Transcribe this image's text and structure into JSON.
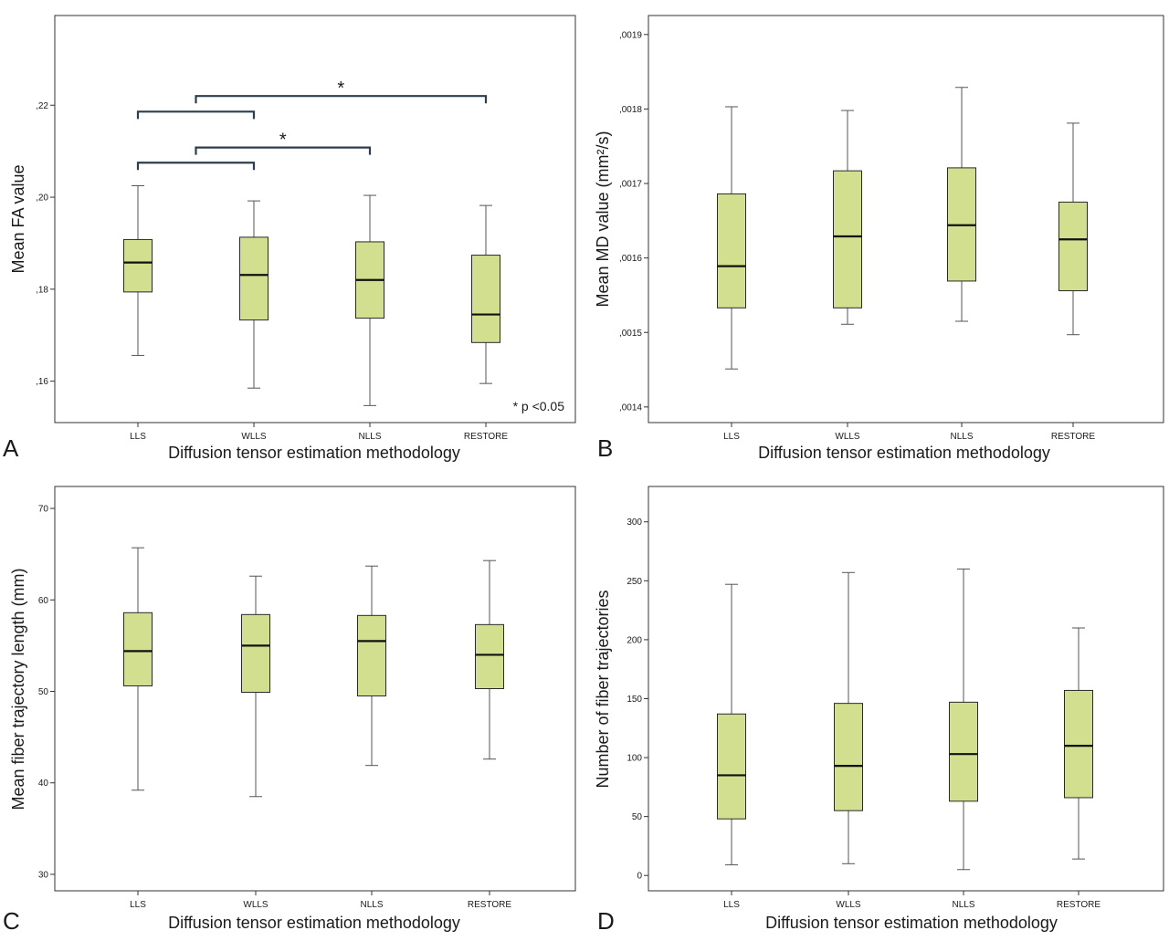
{
  "figure": {
    "colors": {
      "box_fill": "#d2df8e",
      "box_stroke": "#2a2a2a",
      "whisker": "#555555",
      "axis": "#333333",
      "sig_bar": "#2c3e4e"
    }
  },
  "chart_data": [
    {
      "panel": "A",
      "type": "box",
      "xlabel": "Diffusion tensor estimation methodology",
      "ylabel": "Mean FA value",
      "categories": [
        "LLS",
        "WLLS",
        "NLLS",
        "RESTORE"
      ],
      "ylim": [
        0.151,
        0.2395
      ],
      "yticks": [
        0.16,
        0.18,
        0.2,
        0.22
      ],
      "ytick_labels": [
        ",16",
        ",18",
        ",20",
        ",22"
      ],
      "boxes": [
        {
          "min": 0.1656,
          "q1": 0.1794,
          "median": 0.1858,
          "q3": 0.1908,
          "max": 0.2025
        },
        {
          "min": 0.1585,
          "q1": 0.1733,
          "median": 0.1831,
          "q3": 0.1913,
          "max": 0.1992
        },
        {
          "min": 0.1547,
          "q1": 0.1737,
          "median": 0.182,
          "q3": 0.1903,
          "max": 0.2004
        },
        {
          "min": 0.1595,
          "q1": 0.1684,
          "median": 0.1745,
          "q3": 0.1874,
          "max": 0.1982
        }
      ],
      "significance": [
        {
          "from": 0,
          "to": 1,
          "level": 0.2186,
          "star": ""
        },
        {
          "from": 0.5,
          "to": 3,
          "level": 0.222,
          "star": "*"
        },
        {
          "from": 0,
          "to": 1,
          "level": 0.2075,
          "star": ""
        },
        {
          "from": 0.5,
          "to": 2,
          "level": 0.2108,
          "star": "*"
        }
      ],
      "annotation": "* p <0.05"
    },
    {
      "panel": "B",
      "type": "box",
      "xlabel": "Diffusion tensor estimation methodology",
      "ylabel": "Mean MD value (mm²/s)",
      "categories": [
        "LLS",
        "WLLS",
        "NLLS",
        "RESTORE"
      ],
      "ylim": [
        0.001379,
        0.0019255
      ],
      "yticks": [
        0.0014,
        0.0015,
        0.0016,
        0.0017,
        0.0018,
        0.0019
      ],
      "ytick_labels": [
        ",0014",
        ",0015",
        ",0016",
        ",0017",
        ",0018",
        ",0019"
      ],
      "boxes": [
        {
          "min": 0.001451,
          "q1": 0.001533,
          "median": 0.001589,
          "q3": 0.001686,
          "max": 0.001803
        },
        {
          "min": 0.001511,
          "q1": 0.001533,
          "median": 0.001629,
          "q3": 0.001717,
          "max": 0.001798
        },
        {
          "min": 0.001515,
          "q1": 0.001569,
          "median": 0.001644,
          "q3": 0.001721,
          "max": 0.001829
        },
        {
          "min": 0.001497,
          "q1": 0.001556,
          "median": 0.001625,
          "q3": 0.001675,
          "max": 0.001781
        }
      ]
    },
    {
      "panel": "C",
      "type": "box",
      "xlabel": "Diffusion tensor estimation methodology",
      "ylabel": "Mean fiber trajectory length (mm)",
      "categories": [
        "LLS",
        "WLLS",
        "NLLS",
        "RESTORE"
      ],
      "ylim": [
        28.2,
        72.4
      ],
      "yticks": [
        30,
        40,
        50,
        60,
        70
      ],
      "ytick_labels": [
        "30",
        "40",
        "50",
        "60",
        "70"
      ],
      "boxes": [
        {
          "min": 39.2,
          "q1": 50.6,
          "median": 54.4,
          "q3": 58.6,
          "max": 65.7
        },
        {
          "min": 38.5,
          "q1": 49.9,
          "median": 55.0,
          "q3": 58.4,
          "max": 62.6
        },
        {
          "min": 41.9,
          "q1": 49.5,
          "median": 55.5,
          "q3": 58.3,
          "max": 63.7
        },
        {
          "min": 42.6,
          "q1": 50.3,
          "median": 54.0,
          "q3": 57.3,
          "max": 64.3
        }
      ]
    },
    {
      "panel": "D",
      "type": "box",
      "xlabel": "Diffusion tensor estimation methodology",
      "ylabel": "Number of fiber trajectories",
      "categories": [
        "LLS",
        "WLLS",
        "NLLS",
        "RESTORE"
      ],
      "ylim": [
        -13,
        330
      ],
      "yticks": [
        0,
        50,
        100,
        150,
        200,
        250,
        300
      ],
      "ytick_labels": [
        "0",
        "50",
        "100",
        "150",
        "200",
        "250",
        "300"
      ],
      "boxes": [
        {
          "min": 9,
          "q1": 48,
          "median": 85,
          "q3": 137,
          "max": 247
        },
        {
          "min": 10,
          "q1": 55,
          "median": 93,
          "q3": 146,
          "max": 257
        },
        {
          "min": 5,
          "q1": 63,
          "median": 103,
          "q3": 147,
          "max": 260
        },
        {
          "min": 14,
          "q1": 66,
          "median": 110,
          "q3": 157,
          "max": 210
        }
      ]
    }
  ]
}
